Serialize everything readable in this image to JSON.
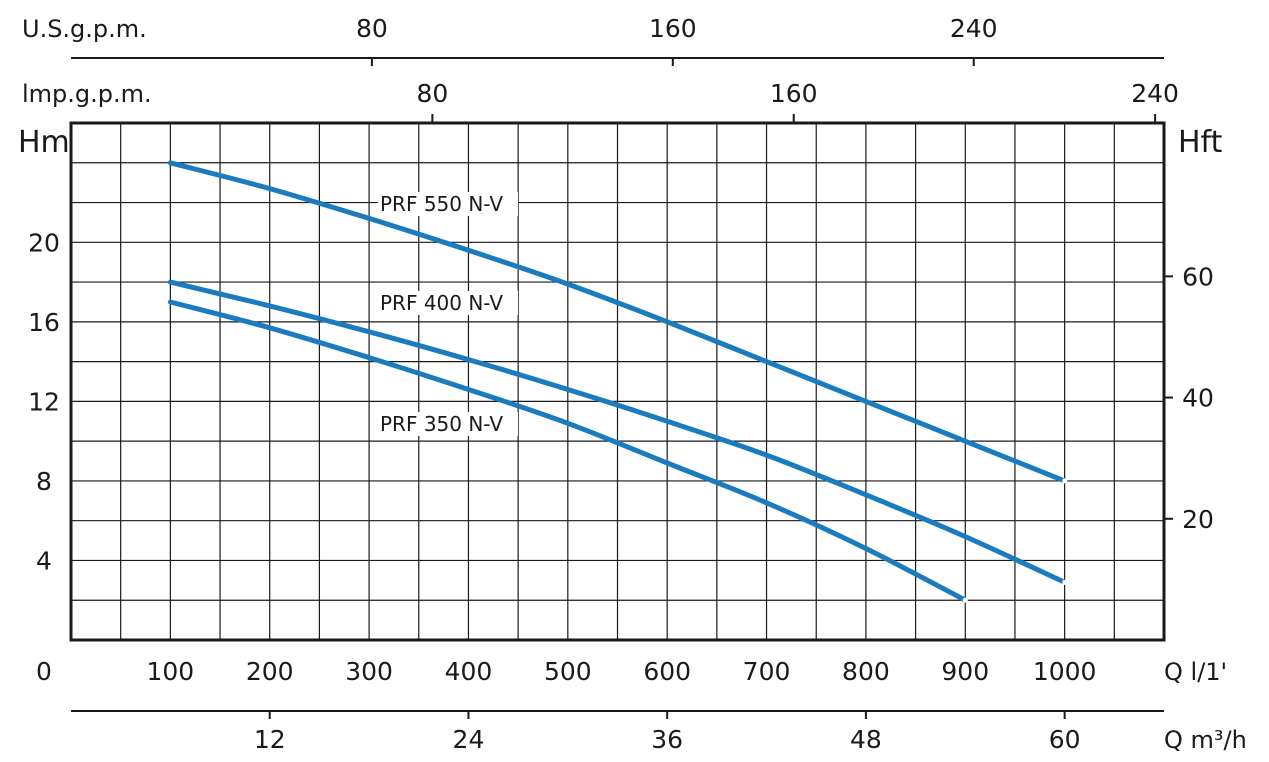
{
  "chart_data": {
    "type": "line",
    "title": "",
    "x": {
      "label": "Q l/1'",
      "ticks": [
        0,
        100,
        200,
        300,
        400,
        500,
        600,
        700,
        800,
        900,
        1000
      ],
      "range": [
        0,
        1100
      ]
    },
    "x_m3h": {
      "label": "Q m³/h",
      "ticks": [
        12,
        24,
        36,
        48,
        60
      ]
    },
    "x_imp": {
      "label": "lmp.g.p.m.",
      "ticks": [
        80,
        160,
        240
      ]
    },
    "x_us": {
      "label": "U.S.g.p.m.",
      "ticks": [
        80,
        160,
        240
      ]
    },
    "y": {
      "label": "Hm",
      "ticks": [
        4,
        8,
        12,
        16,
        20
      ],
      "range": [
        0,
        26
      ]
    },
    "y_ft": {
      "label": "Hft",
      "ticks": [
        20,
        40,
        60
      ]
    },
    "grid": true,
    "series": [
      {
        "name": "PRF 550 N-V",
        "color": "#1a7bbf",
        "x": [
          100,
          200,
          300,
          400,
          500,
          600,
          700,
          800,
          900,
          1000
        ],
        "y": [
          24,
          22.7,
          21.2,
          19.6,
          17.9,
          16.0,
          14.0,
          12.0,
          10.0,
          8.0
        ]
      },
      {
        "name": "PRF 400 N-V",
        "color": "#1a7bbf",
        "x": [
          100,
          200,
          300,
          400,
          500,
          600,
          700,
          800,
          900,
          1000
        ],
        "y": [
          18.0,
          16.8,
          15.5,
          14.1,
          12.6,
          11.0,
          9.3,
          7.3,
          5.2,
          2.9
        ]
      },
      {
        "name": "PRF 350 N-V",
        "color": "#1a7bbf",
        "x": [
          100,
          200,
          300,
          400,
          500,
          600,
          700,
          800,
          900
        ],
        "y": [
          17.0,
          15.7,
          14.2,
          12.6,
          10.9,
          8.9,
          6.9,
          4.6,
          2.0
        ]
      }
    ]
  }
}
